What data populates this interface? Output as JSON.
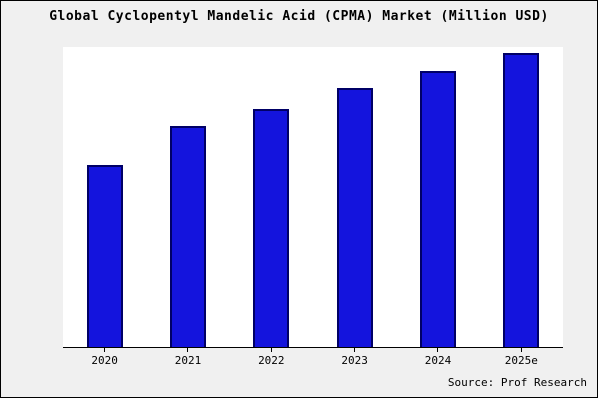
{
  "chart_data": {
    "type": "bar",
    "title": "Global Cyclopentyl Mandelic Acid (CPMA) Market (Million USD)",
    "categories": [
      "2020",
      "2021",
      "2022",
      "2023",
      "2024",
      "2025e"
    ],
    "values": [
      62,
      75,
      81,
      88,
      94,
      100
    ],
    "xlabel": "",
    "ylabel": "",
    "ylim": [
      0,
      102
    ],
    "grid": false,
    "legend": "none",
    "bar_fill_color": "#1414dd",
    "bar_border_color": "#000066",
    "note": "values are relative estimates; no y-axis scale shown in chart"
  },
  "source": "Source: Prof Research"
}
